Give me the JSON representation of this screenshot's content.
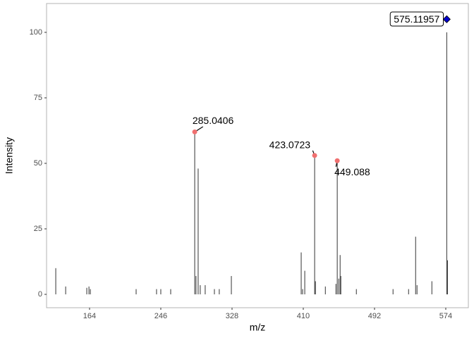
{
  "chart_data": {
    "type": "spectrum",
    "x_label": "m/z",
    "y_label": "Intensity",
    "xlim": [
      114.5,
      600
    ],
    "ylim": [
      -5.1,
      111
    ],
    "xticks": [
      164,
      246,
      328,
      410,
      492,
      574
    ],
    "yticks": [
      0,
      25,
      50,
      75,
      100
    ],
    "grid": false,
    "color": "#333333",
    "x": [
      125.1,
      136.5,
      160.8,
      163.3,
      164.9,
      217.6,
      241.1,
      246,
      257.4,
      285.0406,
      286.5,
      289,
      291.4,
      297.1,
      307.7,
      313.3,
      327.2,
      407.6,
      409.2,
      411.7,
      423.0723,
      424,
      435.4,
      447.6,
      449.088,
      450.8,
      452.4,
      453.2,
      471.1,
      513.3,
      531.2,
      539.3,
      540.9,
      558,
      575.11957,
      576
    ],
    "values": [
      10,
      3,
      2.5,
      3,
      2,
      2,
      2,
      2,
      2,
      62,
      7,
      48,
      3.5,
      3.5,
      2,
      2,
      7,
      16,
      2,
      9,
      53,
      5,
      3,
      4,
      51,
      6,
      15,
      7,
      2,
      2,
      2,
      22,
      3.5,
      5,
      100,
      13
    ],
    "highlights": {
      "color": "#f07070",
      "x": [
        285.0406,
        423.0723,
        449.088
      ],
      "values": [
        62,
        53,
        51
      ]
    },
    "precursor": {
      "color": "#0000cc",
      "x": 575.11957,
      "value": 105
    }
  }
}
